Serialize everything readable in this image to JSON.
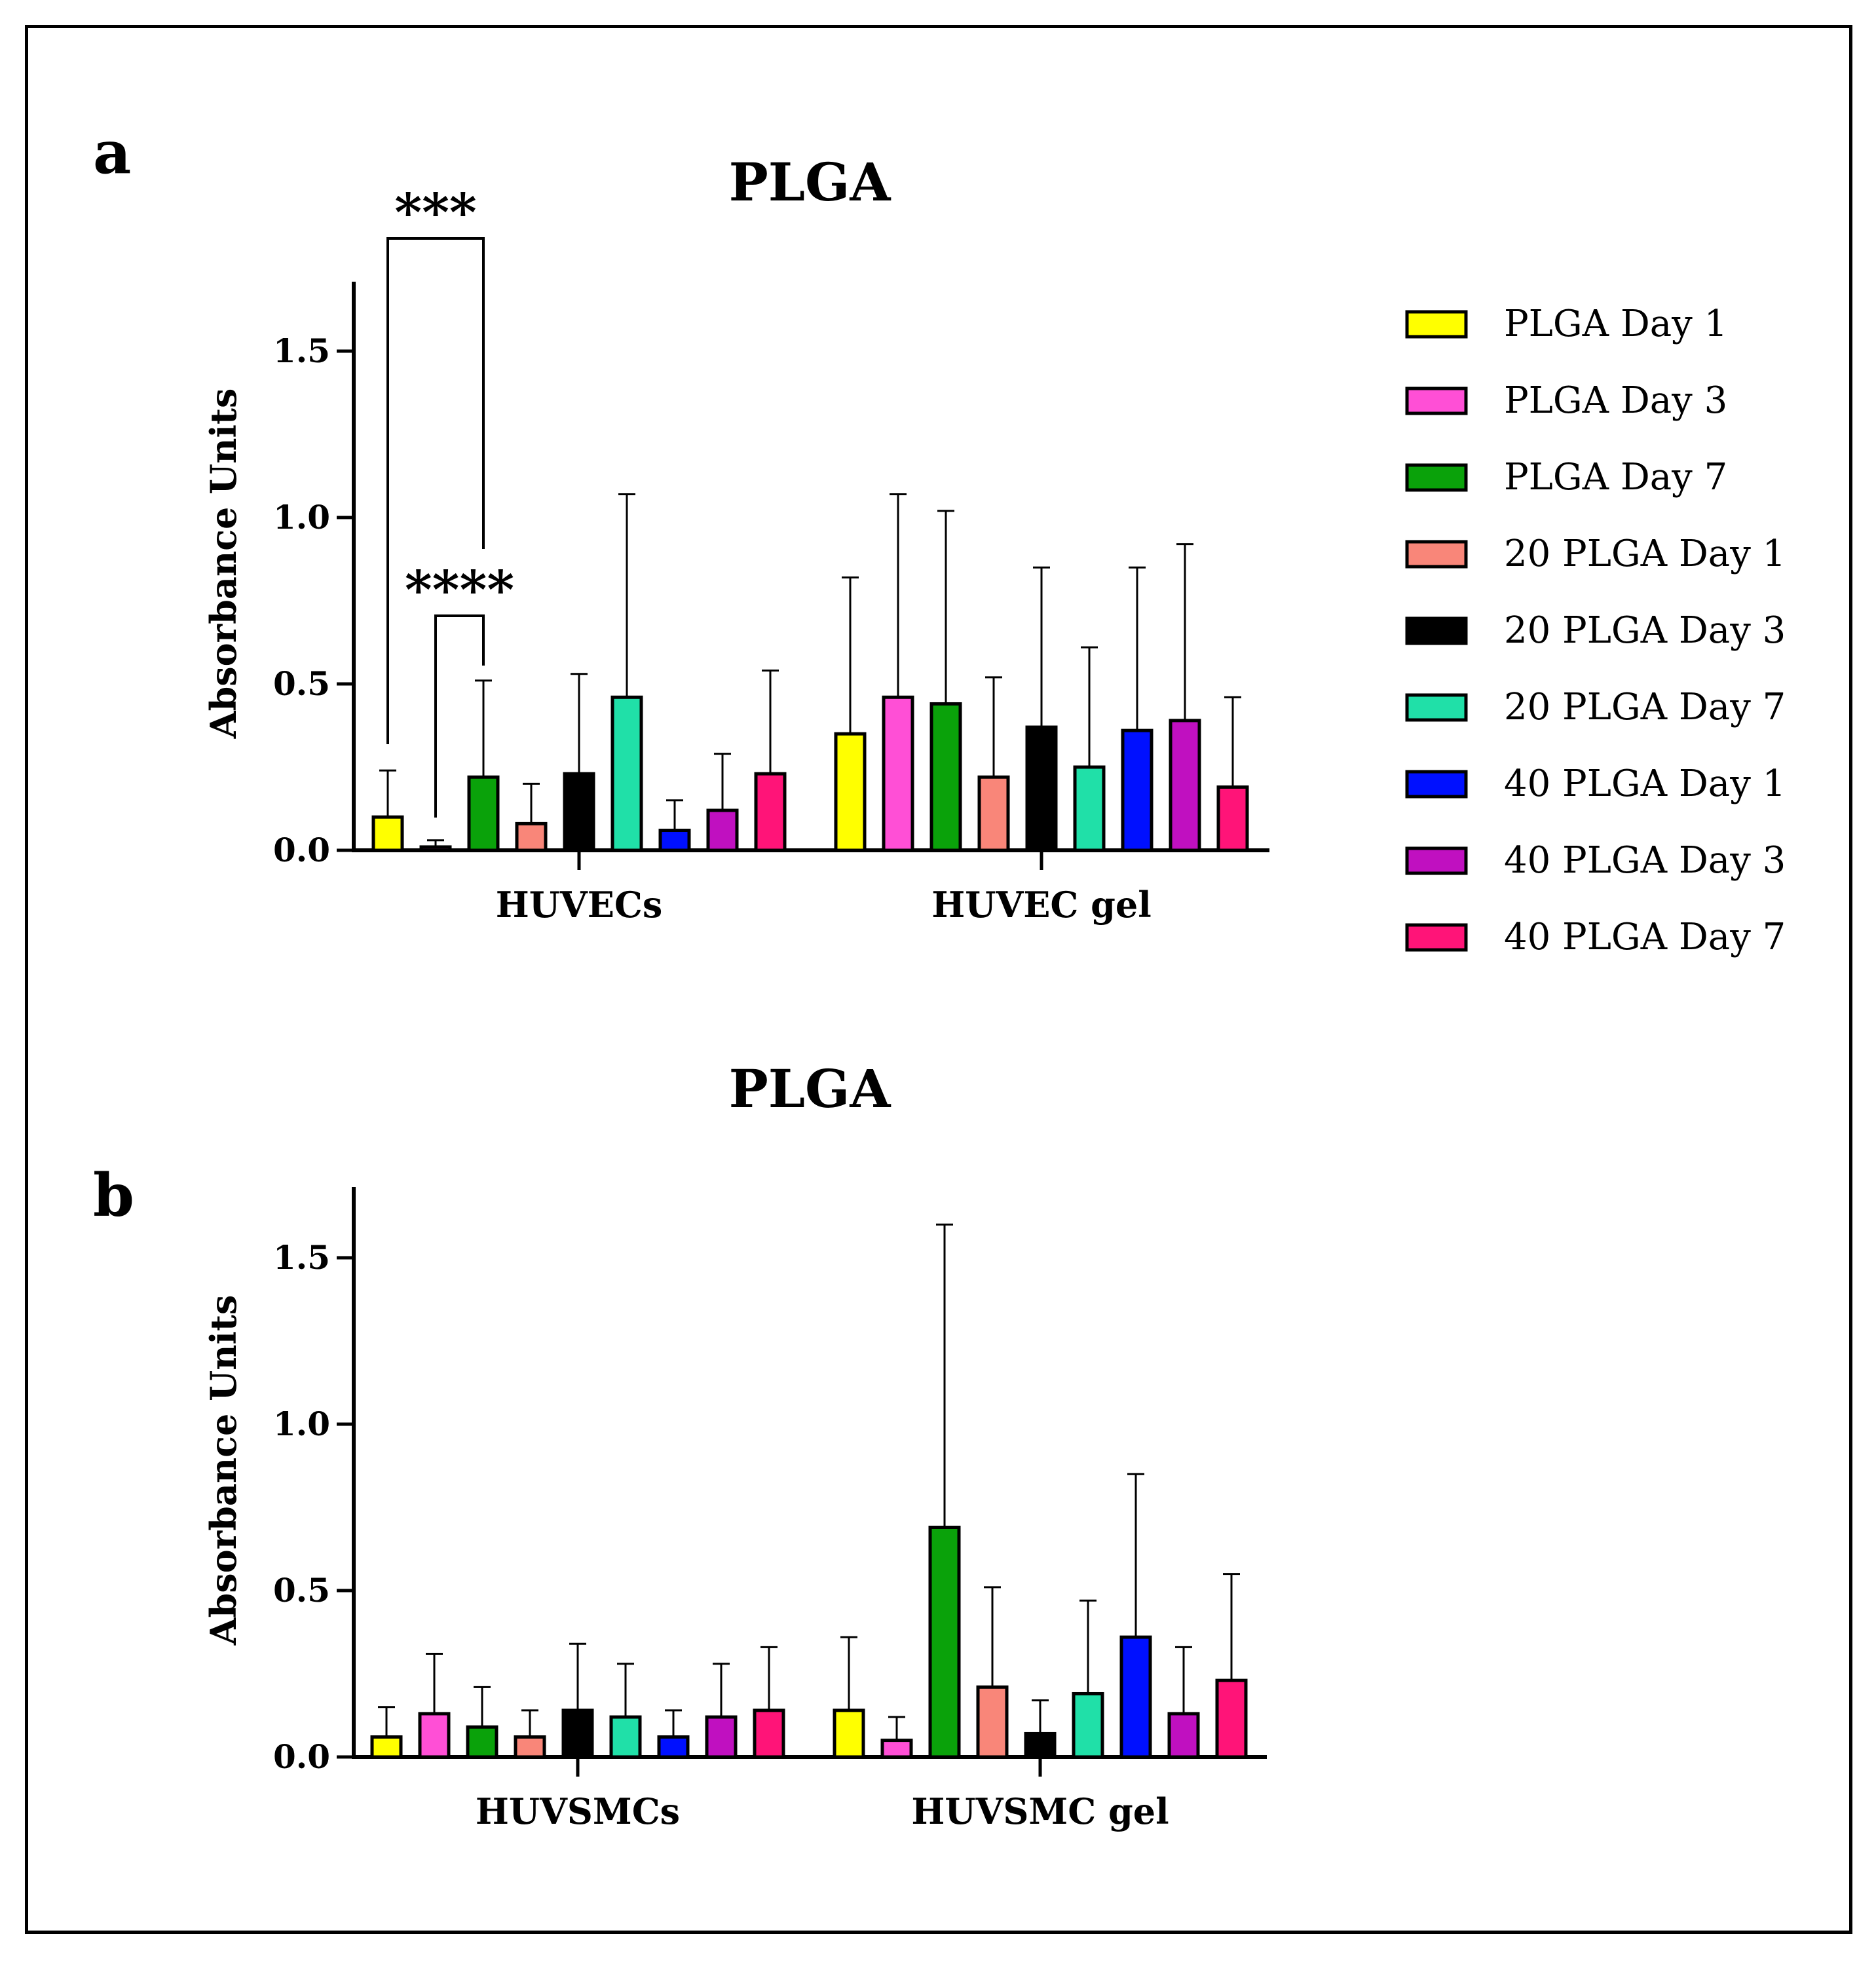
{
  "legend": [
    {
      "label": "PLGA Day 1",
      "color": "#ffff00"
    },
    {
      "label": "PLGA Day 3",
      "color": "#ff4fd6"
    },
    {
      "label": "PLGA Day 7",
      "color": "#0aa20a"
    },
    {
      "label": "20 PLGA Day 1",
      "color": "#f98679"
    },
    {
      "label": "20 PLGA Day 3",
      "color": "#000000"
    },
    {
      "label": "20 PLGA Day 7",
      "color": "#20e0a8"
    },
    {
      "label": "40 PLGA Day 1",
      "color": "#0010ff"
    },
    {
      "label": "40 PLGA Day 3",
      "color": "#c010c0"
    },
    {
      "label": "40 PLGA Day 7",
      "color": "#ff1478"
    }
  ],
  "chart_data": [
    {
      "type": "bar",
      "panel_label": "a",
      "title": "PLGA",
      "ylabel": "Absorbance Units",
      "xlabel": "",
      "ylim": [
        0,
        1.7
      ],
      "yticks": [
        "0.0",
        "0.5",
        "1.0",
        "1.5"
      ],
      "categories": [
        "HUVECs",
        "HUVEC gel"
      ],
      "series": [
        {
          "name": "PLGA Day 1",
          "values": [
            0.1,
            0.35
          ],
          "error": [
            0.14,
            0.47
          ]
        },
        {
          "name": "PLGA Day 3",
          "values": [
            0.01,
            0.46
          ],
          "error": [
            0.02,
            0.61
          ]
        },
        {
          "name": "PLGA Day 7",
          "values": [
            0.22,
            0.44
          ],
          "error": [
            0.29,
            0.58
          ]
        },
        {
          "name": "20 PLGA Day 1",
          "values": [
            0.08,
            0.22
          ],
          "error": [
            0.12,
            0.3
          ]
        },
        {
          "name": "20 PLGA Day 3",
          "values": [
            0.23,
            0.37
          ],
          "error": [
            0.3,
            0.48
          ]
        },
        {
          "name": "20 PLGA Day 7",
          "values": [
            0.46,
            0.25
          ],
          "error": [
            0.61,
            0.36
          ]
        },
        {
          "name": "40 PLGA Day 1",
          "values": [
            0.06,
            0.36
          ],
          "error": [
            0.09,
            0.49
          ]
        },
        {
          "name": "40 PLGA Day 3",
          "values": [
            0.12,
            0.39
          ],
          "error": [
            0.17,
            0.53
          ]
        },
        {
          "name": "40 PLGA Day 7",
          "values": [
            0.23,
            0.19
          ],
          "error": [
            0.31,
            0.27
          ]
        }
      ],
      "annotations": [
        {
          "text": "***",
          "from_series": 0,
          "to_series": 2,
          "category": 0
        },
        {
          "text": "****",
          "from_series": 1,
          "to_series": 2,
          "category": 0
        }
      ]
    },
    {
      "type": "bar",
      "panel_label": "b",
      "title": "PLGA",
      "ylabel": "Absorbance Units",
      "xlabel": "",
      "ylim": [
        0,
        1.7
      ],
      "yticks": [
        "0.0",
        "0.5",
        "1.0",
        "1.5"
      ],
      "categories": [
        "HUVSMCs",
        "HUVSMC gel"
      ],
      "series": [
        {
          "name": "PLGA Day 1",
          "values": [
            0.06,
            0.14
          ],
          "error": [
            0.09,
            0.22
          ]
        },
        {
          "name": "PLGA Day 3",
          "values": [
            0.13,
            0.05
          ],
          "error": [
            0.18,
            0.07
          ]
        },
        {
          "name": "PLGA Day 7",
          "values": [
            0.09,
            0.69
          ],
          "error": [
            0.12,
            0.91
          ]
        },
        {
          "name": "20 PLGA Day 1",
          "values": [
            0.06,
            0.21
          ],
          "error": [
            0.08,
            0.3
          ]
        },
        {
          "name": "20 PLGA Day 3",
          "values": [
            0.14,
            0.07
          ],
          "error": [
            0.2,
            0.1
          ]
        },
        {
          "name": "20 PLGA Day 7",
          "values": [
            0.12,
            0.19
          ],
          "error": [
            0.16,
            0.28
          ]
        },
        {
          "name": "40 PLGA Day 1",
          "values": [
            0.06,
            0.36
          ],
          "error": [
            0.08,
            0.49
          ]
        },
        {
          "name": "40 PLGA Day 3",
          "values": [
            0.12,
            0.13
          ],
          "error": [
            0.16,
            0.2
          ]
        },
        {
          "name": "40 PLGA Day 7",
          "values": [
            0.14,
            0.23
          ],
          "error": [
            0.19,
            0.32
          ]
        }
      ],
      "annotations": []
    }
  ]
}
